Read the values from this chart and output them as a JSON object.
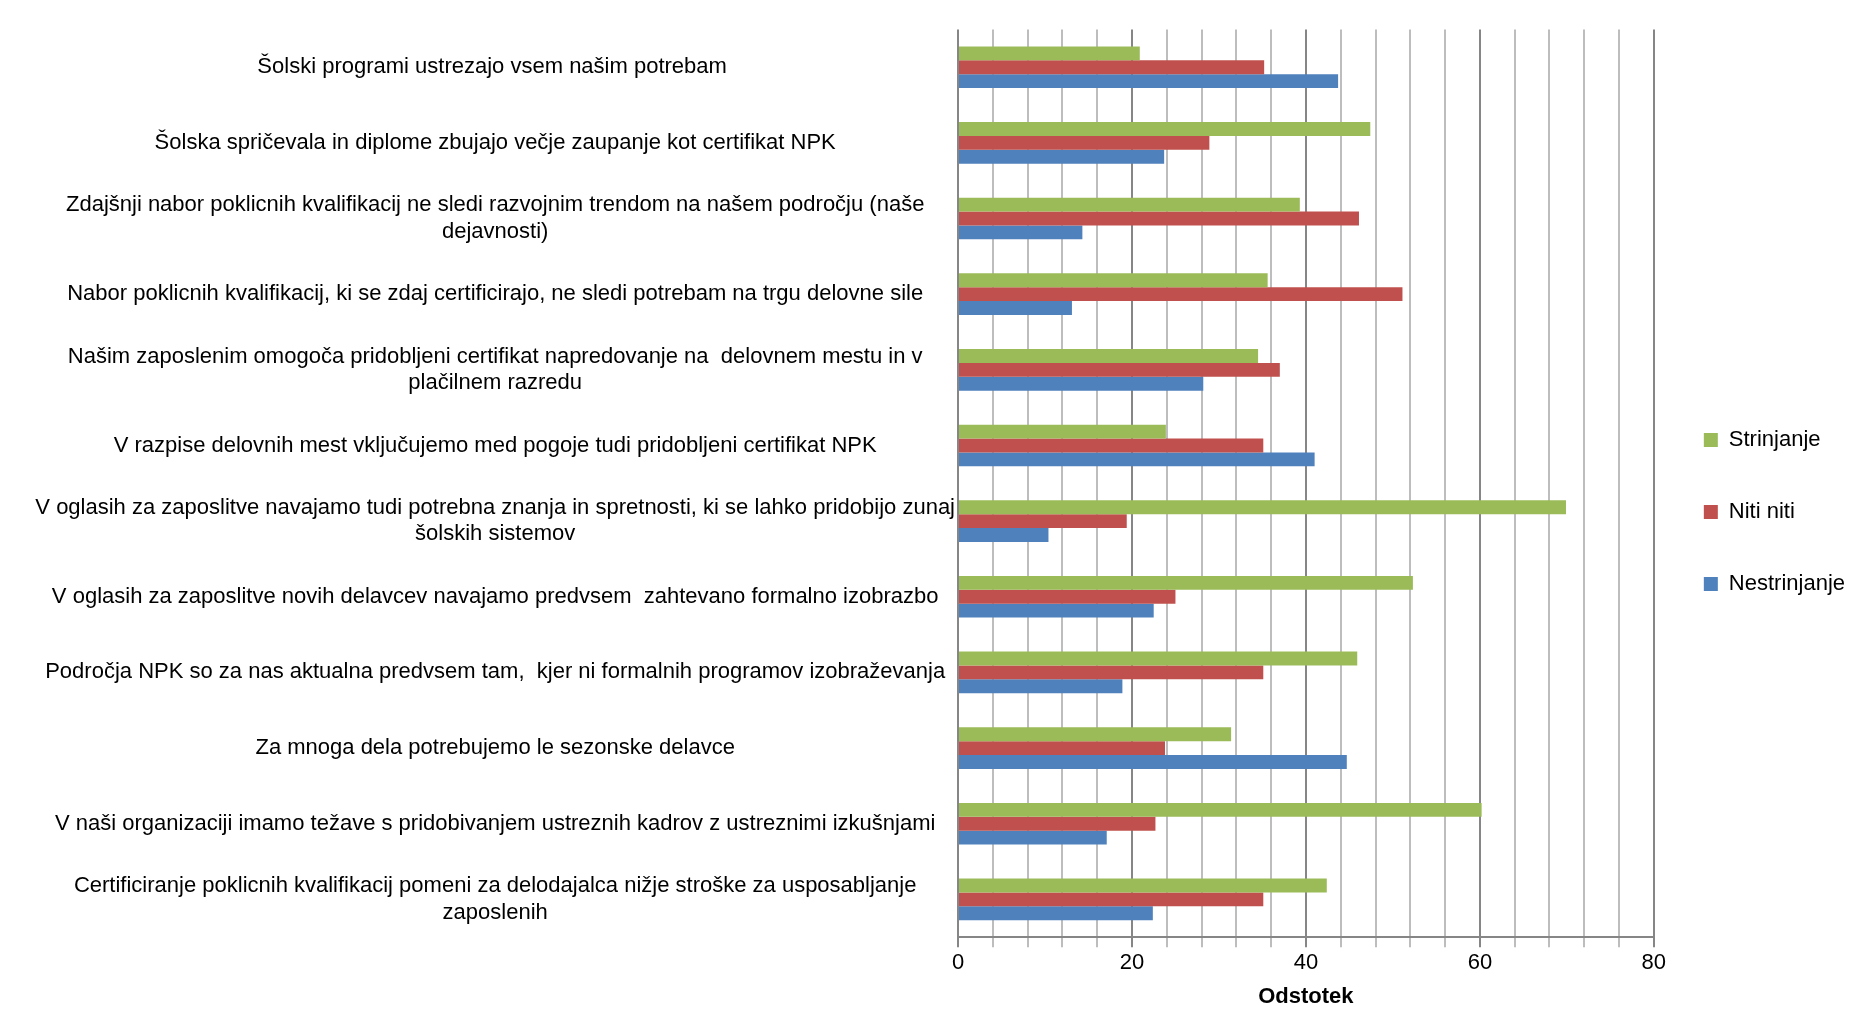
{
  "chart_data": {
    "type": "bar",
    "orientation": "horizontal",
    "xlabel": "Odstotek",
    "categories": [
      "Šolski programi ustrezajo vsem našim potrebam ",
      "Šolska spričevala in diplome zbujajo večje zaupanje kot certifikat NPK",
      "Zdajšnji nabor poklicnih kvalifikacij ne sledi razvojnim trendom na našem področju (naše dejavnosti)",
      "Nabor poklicnih kvalifikacij, ki se zdaj certificirajo, ne sledi potrebam na trgu delovne sile",
      "Našim zaposlenim omogoča pridobljeni certifikat napredovanje na  delovnem mestu in v plačilnem razredu",
      "V razpise delovnih mest vključujemo med pogoje tudi pridobljeni certifikat NPK",
      "V oglasih za zaposlitve navajamo tudi potrebna znanja in spretnosti, ki se lahko pridobijo zunaj šolskih sistemov",
      "V oglasih za zaposlitve novih delavcev navajamo predvsem  zahtevano formalno izobrazbo",
      "Področja NPK so za nas aktualna predvsem tam,  kjer ni formalnih programov izobraževanja",
      "Za mnoga dela potrebujemo le sezonske delavce",
      "V naši organizaciji imamo težave s pridobivanjem ustreznih kadrov z ustreznimi izkušnjami",
      "Certificiranje poklicnih kvalifikacij pomeni za delodajalca nižje stroške za usposabljanje zaposlenih"
    ],
    "series": [
      {
        "name": "Strinjanje",
        "color": "#9bbb59",
        "values": [
          20.9,
          47.4,
          39.3,
          35.6,
          34.5,
          23.9,
          69.9,
          52.3,
          45.9,
          31.4,
          60.2,
          42.4
        ]
      },
      {
        "name": "Niti niti",
        "color": "#c0504d",
        "values": [
          35.2,
          28.9,
          46.1,
          51.1,
          37.0,
          35.1,
          19.4,
          25.0,
          35.1,
          23.8,
          22.7,
          35.1
        ]
      },
      {
        "name": "Nestrinjanje",
        "color": "#4f81bd",
        "values": [
          43.7,
          23.7,
          14.3,
          13.1,
          28.2,
          41.0,
          10.4,
          22.5,
          18.9,
          44.7,
          17.1,
          22.4
        ]
      }
    ],
    "xlim": [
      0,
      80
    ],
    "xticks": [
      0,
      {
        "value": 4,
        "label": null
      },
      {
        "value": 8,
        "label": null
      },
      {
        "value": 12,
        "label": null
      },
      {
        "value": 16,
        "label": null
      },
      20,
      {
        "value": 24,
        "label": null
      },
      {
        "value": 28,
        "label": null
      },
      {
        "value": 32,
        "label": null
      },
      {
        "value": 36,
        "label": null
      },
      40,
      {
        "value": 44,
        "label": null
      },
      {
        "value": 48,
        "label": null
      },
      {
        "value": 52,
        "label": null
      },
      {
        "value": 56,
        "label": null
      },
      60,
      {
        "value": 64,
        "label": null
      },
      {
        "value": 68,
        "label": null
      },
      {
        "value": 72,
        "label": null
      },
      {
        "value": 76,
        "label": null
      },
      80
    ],
    "grid": "x",
    "legend": "right"
  }
}
